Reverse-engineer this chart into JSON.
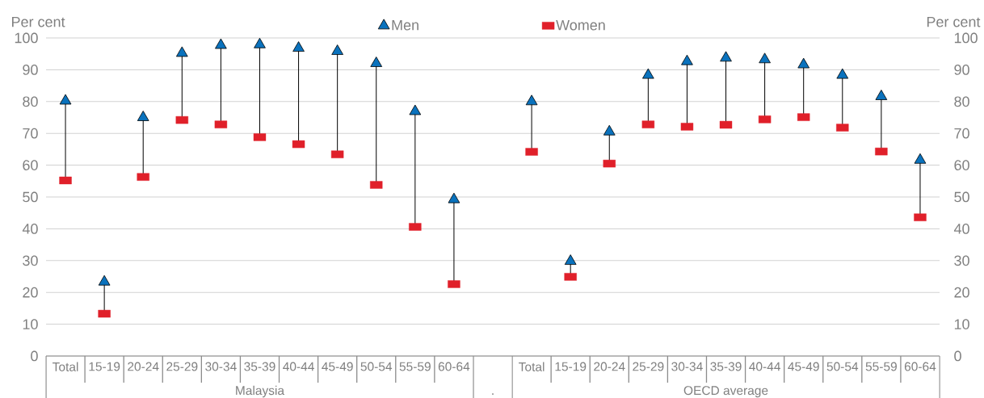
{
  "chart_data": {
    "type": "scatter",
    "ylabel": "Per cent",
    "y2label": "Per cent",
    "categories": [
      "Total",
      "15-19",
      "20-24",
      "25-29",
      "30-34",
      "35-39",
      "40-44",
      "45-49",
      "50-54",
      "55-59",
      "60-64",
      null,
      "Total",
      "15-19",
      "20-24",
      "25-29",
      "30-34",
      "35-39",
      "40-44",
      "45-49",
      "50-54",
      "55-59",
      "60-64"
    ],
    "annotations": [
      "Malaysia",
      ".",
      "OECD average"
    ],
    "series": [
      {
        "name": "Men",
        "color": "#0a72bd",
        "marker": "triangle",
        "values": [
          80.2,
          23.3,
          75,
          95.2,
          97.7,
          97.9,
          96.8,
          95.8,
          92,
          76.9,
          49.2,
          null,
          80,
          29.8,
          70.5,
          88.3,
          92.6,
          93.7,
          93.2,
          91.6,
          88.3,
          81.6,
          61.6
        ]
      },
      {
        "name": "Women",
        "color": "#e0202a",
        "marker": "square",
        "values": [
          55.2,
          13.3,
          56.3,
          74.2,
          72.8,
          68.8,
          66.6,
          63.4,
          53.8,
          40.6,
          22.6,
          null,
          64.2,
          24.9,
          60.5,
          72.8,
          72.1,
          72.7,
          74.4,
          75.1,
          71.8,
          64.3,
          43.6
        ]
      }
    ],
    "ylim": [
      0,
      100
    ],
    "yticks": [
      0,
      10,
      20,
      30,
      40,
      50,
      60,
      70,
      80,
      90,
      100
    ],
    "y2lim": [
      0,
      100
    ],
    "y2ticks": [
      0,
      10,
      20,
      30,
      40,
      50,
      60,
      70,
      80,
      90,
      100
    ],
    "grid": "y",
    "legend": "top"
  }
}
